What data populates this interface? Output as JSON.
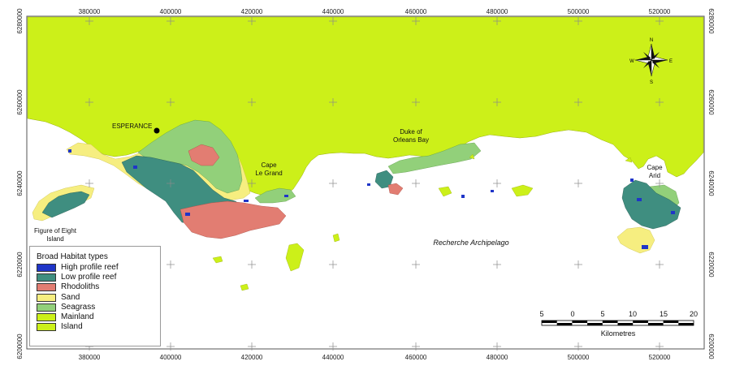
{
  "legend": {
    "title": "Broad Habitat types",
    "items": [
      {
        "label": "High profile reef",
        "color": "#1f35c8"
      },
      {
        "label": "Low profile reef",
        "color": "#3f8e80"
      },
      {
        "label": "Rhodoliths",
        "color": "#e27d72"
      },
      {
        "label": "Sand",
        "color": "#f6ee80"
      },
      {
        "label": "Seagrass",
        "color": "#92d07a"
      },
      {
        "label": "Mainland",
        "color": "#ccf019"
      },
      {
        "label": "Island",
        "color": "#ccf019"
      }
    ]
  },
  "axes": {
    "easting": [
      "380000",
      "400000",
      "420000",
      "440000",
      "460000",
      "480000",
      "500000",
      "520000"
    ],
    "northing": [
      "6280000",
      "6260000",
      "6240000",
      "6220000",
      "6200000"
    ]
  },
  "places": {
    "esperance": "ESPERANCE",
    "duke_line1": "Duke of",
    "duke_line2": "Orleans Bay",
    "cape_legrand_line1": "Cape",
    "cape_legrand_line2": "Le Grand",
    "cape_arid_line1": "Cape",
    "cape_arid_line2": "Arid",
    "figure_eight_line1": "Figure of Eight",
    "figure_eight_line2": "Island",
    "archipelago": "Recherche Archipelago"
  },
  "scale_bar": {
    "ticks": [
      "5",
      "0",
      "5",
      "10",
      "15",
      "20"
    ],
    "unit": "Kilometres"
  },
  "north_arrow": {
    "n": "N",
    "s": "S",
    "e": "E",
    "w": "W"
  },
  "colors": {
    "mainland": "#ccf019",
    "water": "#ffffff"
  }
}
